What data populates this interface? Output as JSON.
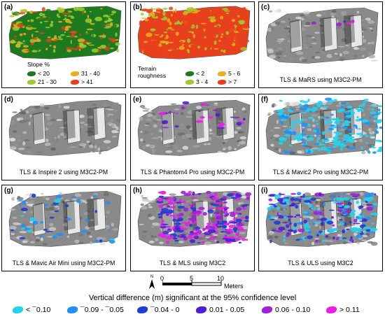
{
  "panels": [
    {
      "label": "(a)",
      "caption": ""
    },
    {
      "label": "(b)",
      "caption": ""
    },
    {
      "label": "(c)",
      "caption": "TLS & MaRS using M3C2-PM"
    },
    {
      "label": "(d)",
      "caption": "TLS & Inspire 2 using M3C2-PM"
    },
    {
      "label": "(e)",
      "caption": "TLS & Phantom4 Pro using M3C2-PM"
    },
    {
      "label": "(f)",
      "caption": "TLS & Mavic2 Pro using M3C2-PM"
    },
    {
      "label": "(g)",
      "caption": "TLS & Mavic Air Mini using M3C2-PM"
    },
    {
      "label": "(h)",
      "caption": "TLS & MLS using M3C2"
    },
    {
      "label": "(i)",
      "caption": "TLS & ULS using M3C2"
    }
  ],
  "slope_legend": {
    "title": "Slope %",
    "items": [
      {
        "label": "< 20",
        "color": "#1f7a1f"
      },
      {
        "label": "31 - 40",
        "color": "#e8b020"
      },
      {
        "label": "21 - 30",
        "color": "#9acd32"
      },
      {
        "label": "> 41",
        "color": "#e8401c"
      }
    ]
  },
  "roughness_legend": {
    "title_line1": "Terrain",
    "title_line2": "roughness",
    "items": [
      {
        "label": "< 2",
        "color": "#1f7a1f"
      },
      {
        "label": "5 - 6",
        "color": "#e8b020"
      },
      {
        "label": "3 - 4",
        "color": "#9acd32"
      },
      {
        "label": "> 7",
        "color": "#e8401c"
      }
    ]
  },
  "scale": {
    "north_label": "N",
    "ticks": [
      "0",
      "5",
      "10"
    ],
    "unit": "Meters"
  },
  "bottom_legend": {
    "title": "Vertical difference (m) significant at the 95% confidence level",
    "items": [
      {
        "label": "< ¯0.10",
        "color": "#22d3ee"
      },
      {
        "label": "¯0.09 - ¯0.05",
        "color": "#1e90ff"
      },
      {
        "label": "¯0.04 - 0",
        "color": "#1c3fd8"
      },
      {
        "label": "0.01 - 0.05",
        "color": "#4b1fd6"
      },
      {
        "label": "0.06 - 0.10",
        "color": "#a020d8"
      },
      {
        "label": "> 0.11",
        "color": "#e81fe8"
      }
    ]
  }
}
